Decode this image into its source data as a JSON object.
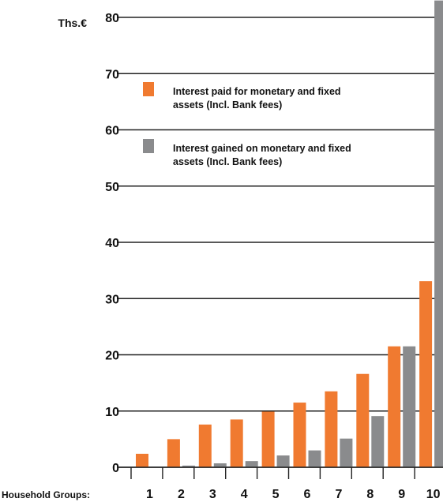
{
  "chart_data": {
    "type": "bar",
    "unit_label": "Ths.€",
    "x_axis_name": "Household Groups:",
    "categories": [
      "1",
      "2",
      "3",
      "4",
      "5",
      "6",
      "7",
      "8",
      "9",
      "10"
    ],
    "y_ticks": [
      "0",
      "10",
      "20",
      "30",
      "40",
      "50",
      "60",
      "70",
      "80"
    ],
    "ylim": [
      0,
      80
    ],
    "grid": true,
    "legend_position": "top-left",
    "series": [
      {
        "name_lines": [
          "Interest paid for monetary and fixed",
          "assets (Incl. Bank fees)"
        ],
        "color": "#f07a30",
        "values": [
          2.4,
          5.0,
          7.6,
          8.5,
          9.9,
          11.5,
          13.5,
          16.6,
          21.5,
          33.1
        ]
      },
      {
        "name_lines": [
          "Interest gained on monetary and fixed",
          "assets (Incl. Bank fees)"
        ],
        "color": "#8a8b8d",
        "values": [
          0.1,
          0.3,
          0.7,
          1.1,
          2.1,
          3.0,
          5.1,
          9.1,
          21.5,
          83.0
        ]
      }
    ]
  }
}
